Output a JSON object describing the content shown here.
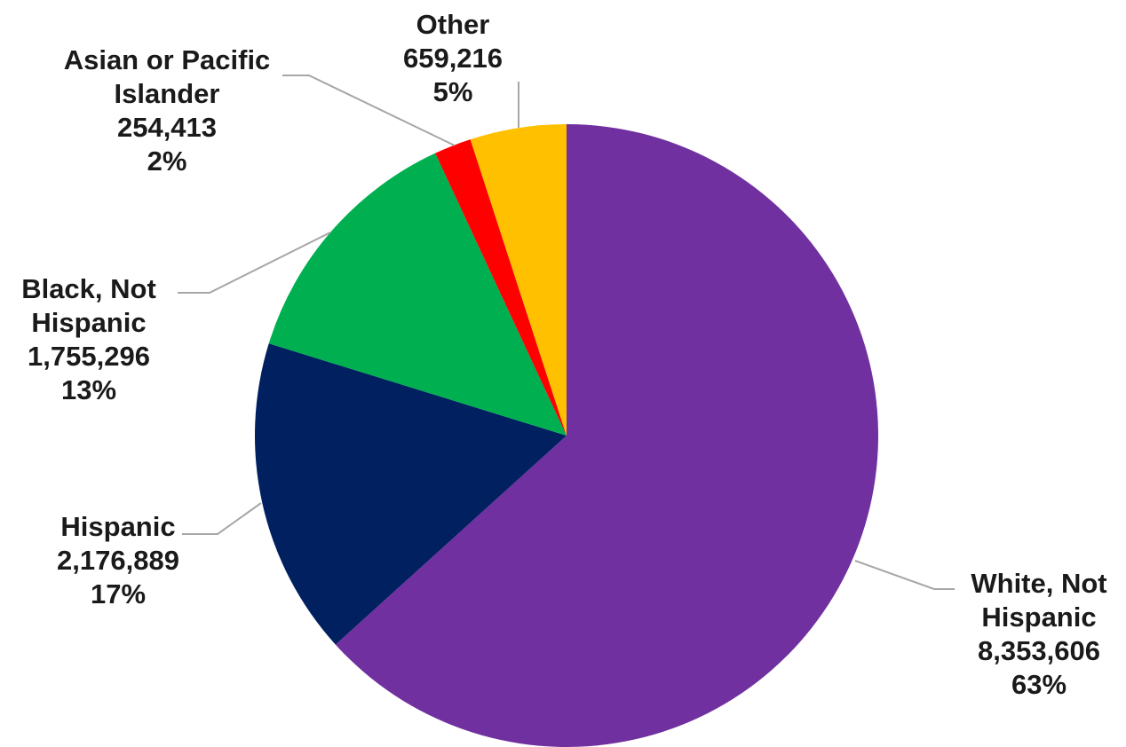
{
  "chart_data": {
    "type": "pie",
    "start_angle_deg": 0,
    "direction": "clockwise",
    "slices": [
      {
        "name": "White, Not Hispanic",
        "name_lines": [
          "White, Not",
          "Hispanic"
        ],
        "value": 8353606,
        "value_label": "8,353,606",
        "percent_label": "63%",
        "color": "#7030A0"
      },
      {
        "name": "Hispanic",
        "name_lines": [
          "Hispanic"
        ],
        "value": 2176889,
        "value_label": "2,176,889",
        "percent_label": "17%",
        "color": "#002060"
      },
      {
        "name": "Black, Not Hispanic",
        "name_lines": [
          "Black, Not",
          "Hispanic"
        ],
        "value": 1755296,
        "value_label": "1,755,296",
        "percent_label": "13%",
        "color": "#00B050"
      },
      {
        "name": "Asian or Pacific Islander",
        "name_lines": [
          "Asian or Pacific",
          "Islander"
        ],
        "value": 254413,
        "value_label": "254,413",
        "percent_label": "2%",
        "color": "#FF0000"
      },
      {
        "name": "Other",
        "name_lines": [
          "Other"
        ],
        "value": 659216,
        "value_label": "659,216",
        "percent_label": "5%",
        "color": "#FFC000"
      }
    ]
  }
}
